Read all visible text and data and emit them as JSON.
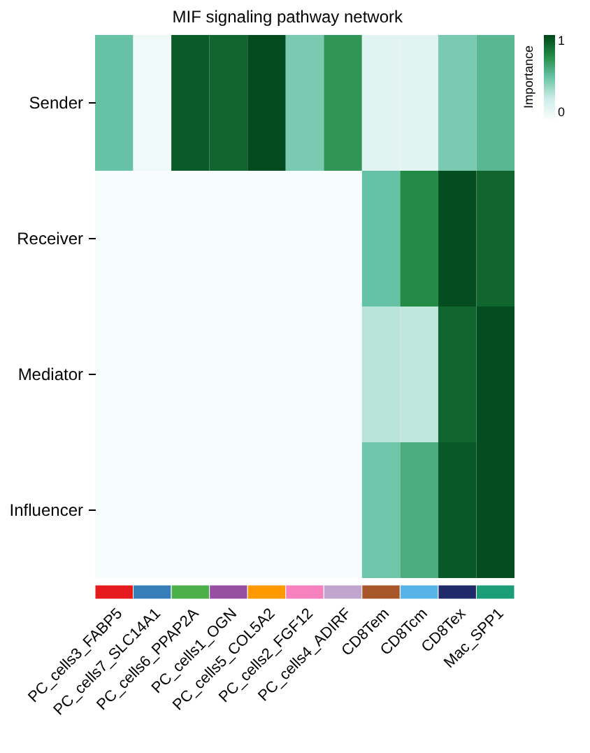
{
  "chart_data": {
    "type": "heatmap",
    "title": "MIF signaling pathway network",
    "clabel": "Importance",
    "categories": [
      "PC_cells3_FABP5",
      "PC_cells7_SLC14A1",
      "PC_cells6_PPAP2A",
      "PC_cells1_OGN",
      "PC_cells5_COL5A2",
      "PC_cells2_FGF12",
      "PC_cells4_ADIRF",
      "CD8Tem",
      "CD8Tcm",
      "CD8Tex",
      "Mac_SPP1"
    ],
    "colors": [
      "#e41a1c",
      "#377eb8",
      "#4daf4a",
      "#984ea3",
      "#ff9900",
      "#f781bf",
      "#c2a5cf",
      "#a65628",
      "#56b4e9",
      "#1f2a6b",
      "#1b9e77"
    ],
    "y_categories": [
      "Sender",
      "Receiver",
      "Mediator",
      "Influencer"
    ],
    "cells": [
      [
        0.5,
        0.05,
        0.92,
        0.88,
        0.98,
        0.45,
        0.7,
        0.12,
        0.12,
        0.45,
        0.55
      ],
      [
        0,
        0,
        0,
        0,
        0,
        0,
        0,
        0.5,
        0.75,
        0.97,
        0.88
      ],
      [
        0,
        0,
        0,
        0,
        0,
        0,
        0,
        0.3,
        0.28,
        0.88,
        0.97
      ],
      [
        0,
        0,
        0,
        0,
        0,
        0,
        0,
        0.48,
        0.6,
        0.93,
        0.97
      ]
    ],
    "clim": [
      0,
      1
    ],
    "cticks": [
      0,
      1
    ]
  }
}
